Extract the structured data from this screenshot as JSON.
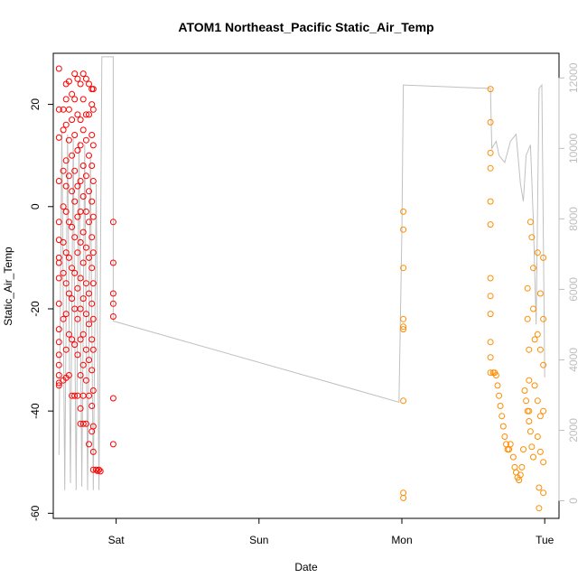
{
  "chart_data": {
    "type": "scatter",
    "title": "ATOM1 Northeast_Pacific Static_Air_Temp",
    "xlabel": "Date",
    "ylabel": "Static_Air_Temp",
    "x_ticks": [
      "Sat",
      "Sun",
      "Mon",
      "Tue"
    ],
    "xlim_days": [
      -0.44,
      3.1
    ],
    "ylim": [
      -61,
      30
    ],
    "y_ticks": [
      -60,
      -40,
      -20,
      0,
      20
    ],
    "right_axis": {
      "label": "",
      "ticks": [
        0,
        2000,
        4000,
        6000,
        8000,
        10000,
        12000
      ],
      "ylim": [
        -500,
        12700
      ],
      "color": "#bdbdbd"
    },
    "grid": false,
    "legend": "none",
    "series": [
      {
        "color": "#ff0000",
        "marker": "open-circle",
        "points": [
          [
            -0.4,
            27
          ],
          [
            -0.4,
            19
          ],
          [
            -0.4,
            13.5
          ],
          [
            -0.4,
            5
          ],
          [
            -0.4,
            -3
          ],
          [
            -0.4,
            -6.5
          ],
          [
            -0.4,
            -10
          ],
          [
            -0.4,
            -11
          ],
          [
            -0.4,
            -14
          ],
          [
            -0.4,
            -19
          ],
          [
            -0.4,
            -24
          ],
          [
            -0.4,
            -26.5
          ],
          [
            -0.4,
            -29
          ],
          [
            -0.4,
            -31
          ],
          [
            -0.4,
            -33
          ],
          [
            -0.4,
            -34.5
          ],
          [
            -0.4,
            -35
          ],
          [
            -0.37,
            19
          ],
          [
            -0.37,
            15
          ],
          [
            -0.37,
            7
          ],
          [
            -0.37,
            0
          ],
          [
            -0.37,
            -7
          ],
          [
            -0.37,
            -13
          ],
          [
            -0.37,
            -22
          ],
          [
            -0.37,
            -34
          ],
          [
            -0.35,
            24
          ],
          [
            -0.35,
            21
          ],
          [
            -0.35,
            16
          ],
          [
            -0.35,
            9
          ],
          [
            -0.35,
            4
          ],
          [
            -0.35,
            -1
          ],
          [
            -0.35,
            -9
          ],
          [
            -0.35,
            -15
          ],
          [
            -0.35,
            -21
          ],
          [
            -0.35,
            -28
          ],
          [
            -0.35,
            -33.5
          ],
          [
            -0.33,
            24.5
          ],
          [
            -0.33,
            19
          ],
          [
            -0.33,
            13
          ],
          [
            -0.33,
            6
          ],
          [
            -0.33,
            -3
          ],
          [
            -0.33,
            -10
          ],
          [
            -0.33,
            -17
          ],
          [
            -0.33,
            -25
          ],
          [
            -0.33,
            -33
          ],
          [
            -0.31,
            22
          ],
          [
            -0.31,
            17
          ],
          [
            -0.31,
            10
          ],
          [
            -0.31,
            3
          ],
          [
            -0.31,
            -4
          ],
          [
            -0.31,
            -12
          ],
          [
            -0.31,
            -18
          ],
          [
            -0.31,
            -26
          ],
          [
            -0.31,
            -37
          ],
          [
            -0.29,
            26
          ],
          [
            -0.29,
            21
          ],
          [
            -0.29,
            14
          ],
          [
            -0.29,
            7
          ],
          [
            -0.29,
            1
          ],
          [
            -0.29,
            -6
          ],
          [
            -0.29,
            -13
          ],
          [
            -0.29,
            -20
          ],
          [
            -0.29,
            -27
          ],
          [
            -0.29,
            -37
          ],
          [
            -0.27,
            25
          ],
          [
            -0.27,
            18
          ],
          [
            -0.27,
            11
          ],
          [
            -0.27,
            4
          ],
          [
            -0.27,
            -2
          ],
          [
            -0.27,
            -9
          ],
          [
            -0.27,
            -16
          ],
          [
            -0.27,
            -22
          ],
          [
            -0.27,
            -29
          ],
          [
            -0.27,
            -37
          ],
          [
            -0.25,
            24
          ],
          [
            -0.25,
            17
          ],
          [
            -0.25,
            12
          ],
          [
            -0.25,
            5
          ],
          [
            -0.25,
            -1
          ],
          [
            -0.25,
            -7
          ],
          [
            -0.25,
            -14
          ],
          [
            -0.25,
            -20
          ],
          [
            -0.25,
            -26
          ],
          [
            -0.25,
            -33
          ],
          [
            -0.25,
            -39.5
          ],
          [
            -0.25,
            -42.5
          ],
          [
            -0.23,
            26
          ],
          [
            -0.23,
            21
          ],
          [
            -0.23,
            15
          ],
          [
            -0.23,
            8
          ],
          [
            -0.23,
            2
          ],
          [
            -0.23,
            -5
          ],
          [
            -0.23,
            -11
          ],
          [
            -0.23,
            -18
          ],
          [
            -0.23,
            -25
          ],
          [
            -0.23,
            -31
          ],
          [
            -0.23,
            -37
          ],
          [
            -0.23,
            -42.5
          ],
          [
            -0.21,
            25
          ],
          [
            -0.21,
            18
          ],
          [
            -0.21,
            13
          ],
          [
            -0.21,
            6
          ],
          [
            -0.21,
            -1
          ],
          [
            -0.21,
            -8
          ],
          [
            -0.21,
            -15
          ],
          [
            -0.21,
            -21
          ],
          [
            -0.21,
            -28
          ],
          [
            -0.21,
            -34
          ],
          [
            -0.21,
            -42.5
          ],
          [
            -0.19,
            24
          ],
          [
            -0.19,
            18
          ],
          [
            -0.19,
            10
          ],
          [
            -0.19,
            3
          ],
          [
            -0.19,
            -3
          ],
          [
            -0.19,
            -10
          ],
          [
            -0.19,
            -17
          ],
          [
            -0.19,
            -23
          ],
          [
            -0.19,
            -30
          ],
          [
            -0.19,
            -37
          ],
          [
            -0.19,
            -46.5
          ],
          [
            -0.17,
            23
          ],
          [
            -0.17,
            20
          ],
          [
            -0.17,
            14
          ],
          [
            -0.17,
            8
          ],
          [
            -0.17,
            1
          ],
          [
            -0.17,
            -6
          ],
          [
            -0.17,
            -12
          ],
          [
            -0.17,
            -19
          ],
          [
            -0.17,
            -26
          ],
          [
            -0.17,
            -32
          ],
          [
            -0.17,
            -39
          ],
          [
            -0.17,
            -44
          ],
          [
            -0.16,
            23
          ],
          [
            -0.16,
            19
          ],
          [
            -0.16,
            12
          ],
          [
            -0.16,
            5
          ],
          [
            -0.16,
            -2
          ],
          [
            -0.16,
            -9
          ],
          [
            -0.16,
            -15
          ],
          [
            -0.16,
            -22
          ],
          [
            -0.16,
            -28
          ],
          [
            -0.16,
            -36
          ],
          [
            -0.16,
            -43
          ],
          [
            -0.16,
            -48
          ],
          [
            -0.16,
            -51.5
          ],
          [
            -0.14,
            -51.5
          ],
          [
            -0.13,
            -51.7
          ],
          [
            -0.12,
            -51.5
          ],
          [
            -0.11,
            -51.8
          ],
          [
            -0.02,
            -3
          ],
          [
            -0.02,
            -11
          ],
          [
            -0.02,
            -17
          ],
          [
            -0.02,
            -19
          ],
          [
            -0.02,
            -21.5
          ],
          [
            -0.02,
            -37.5
          ],
          [
            -0.02,
            -46.5
          ]
        ]
      },
      {
        "color": "#ff8c00",
        "marker": "open-circle",
        "points": [
          [
            2.01,
            -1
          ],
          [
            2.01,
            -4.5
          ],
          [
            2.01,
            -12
          ],
          [
            2.01,
            -22
          ],
          [
            2.01,
            -23.5
          ],
          [
            2.01,
            -24
          ],
          [
            2.01,
            -38
          ],
          [
            2.01,
            -56
          ],
          [
            2.01,
            -57
          ],
          [
            2.62,
            23
          ],
          [
            2.62,
            16.5
          ],
          [
            2.62,
            10.5
          ],
          [
            2.62,
            7.5
          ],
          [
            2.62,
            1
          ],
          [
            2.62,
            -3.5
          ],
          [
            2.62,
            -14
          ],
          [
            2.62,
            -17.5
          ],
          [
            2.62,
            -21
          ],
          [
            2.62,
            -26.5
          ],
          [
            2.62,
            -29.5
          ],
          [
            2.62,
            -32.5
          ],
          [
            2.64,
            -32.5
          ],
          [
            2.65,
            -32.5
          ],
          [
            2.66,
            -33
          ],
          [
            2.67,
            -35
          ],
          [
            2.68,
            -37
          ],
          [
            2.69,
            -39
          ],
          [
            2.7,
            -41
          ],
          [
            2.71,
            -43
          ],
          [
            2.72,
            -45
          ],
          [
            2.73,
            -46.5
          ],
          [
            2.74,
            -47.5
          ],
          [
            2.75,
            -47.5
          ],
          [
            2.76,
            -46.5
          ],
          [
            2.78,
            -49
          ],
          [
            2.79,
            -51
          ],
          [
            2.8,
            -52
          ],
          [
            2.81,
            -53
          ],
          [
            2.82,
            -53.5
          ],
          [
            2.83,
            -52.5
          ],
          [
            2.84,
            -51
          ],
          [
            2.85,
            -47.5
          ],
          [
            2.86,
            -36
          ],
          [
            2.87,
            -38
          ],
          [
            2.88,
            -40
          ],
          [
            2.89,
            -42
          ],
          [
            2.9,
            -44
          ],
          [
            2.91,
            -47
          ],
          [
            2.92,
            -49
          ],
          [
            2.9,
            -3
          ],
          [
            2.91,
            -6
          ],
          [
            2.92,
            -12
          ],
          [
            2.92,
            -20
          ],
          [
            2.93,
            -26
          ],
          [
            2.93,
            -35
          ],
          [
            2.88,
            -16
          ],
          [
            2.88,
            -22
          ],
          [
            2.89,
            -28
          ],
          [
            2.89,
            -34
          ],
          [
            2.89,
            -40
          ],
          [
            2.95,
            -9
          ],
          [
            2.95,
            -25
          ],
          [
            2.95,
            -38
          ],
          [
            2.95,
            -45
          ],
          [
            2.96,
            -55
          ],
          [
            2.96,
            -59
          ],
          [
            2.97,
            -17
          ],
          [
            2.97,
            -28
          ],
          [
            2.97,
            -41
          ],
          [
            2.97,
            -48
          ],
          [
            2.99,
            -10
          ],
          [
            2.99,
            -22
          ],
          [
            2.99,
            -31
          ],
          [
            2.99,
            -40
          ],
          [
            2.99,
            -50
          ],
          [
            2.99,
            -56
          ]
        ]
      }
    ],
    "altitude_line": {
      "color": "#c0c0c0",
      "points": [
        [
          -0.4,
          1300
        ],
        [
          -0.38,
          10500
        ],
        [
          -0.36,
          300
        ],
        [
          -0.34,
          10400
        ],
        [
          -0.32,
          500
        ],
        [
          -0.3,
          10300
        ],
        [
          -0.28,
          300
        ],
        [
          -0.26,
          10200
        ],
        [
          -0.24,
          400
        ],
        [
          -0.22,
          10100
        ],
        [
          -0.2,
          300
        ],
        [
          -0.18,
          9800
        ],
        [
          -0.16,
          300
        ],
        [
          -0.14,
          9000
        ],
        [
          -0.12,
          300
        ],
        [
          -0.1,
          12600
        ],
        [
          -0.05,
          12600
        ],
        [
          -0.02,
          12600
        ],
        [
          -0.02,
          5100
        ],
        [
          1.98,
          2800
        ],
        [
          2.0,
          7600
        ],
        [
          2.01,
          11800
        ],
        [
          2.62,
          11700
        ],
        [
          2.63,
          10000
        ],
        [
          2.66,
          10200
        ],
        [
          2.68,
          9800
        ],
        [
          2.72,
          9600
        ],
        [
          2.76,
          10200
        ],
        [
          2.8,
          10400
        ],
        [
          2.83,
          9000
        ],
        [
          2.85,
          8500
        ],
        [
          2.87,
          9800
        ],
        [
          2.9,
          10100
        ],
        [
          2.92,
          8000
        ],
        [
          2.94,
          5000
        ],
        [
          2.96,
          11700
        ],
        [
          2.98,
          11800
        ],
        [
          3.0,
          3500
        ]
      ]
    }
  }
}
